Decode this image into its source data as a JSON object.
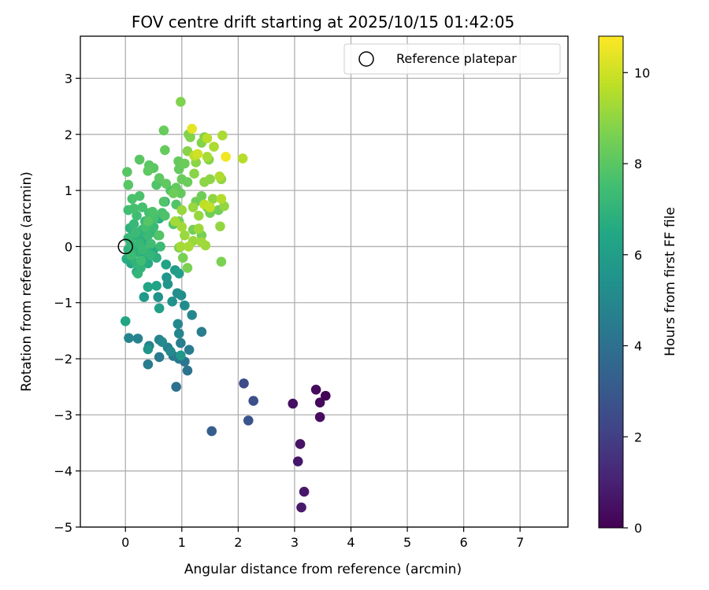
{
  "chart_data": {
    "type": "scatter",
    "title": "FOV centre drift starting at 2025/10/15 01:42:05",
    "xlabel": "Angular distance from reference (arcmin)",
    "ylabel": "Rotation from reference (arcmin)",
    "xlim": [
      -0.8,
      7.85
    ],
    "ylim": [
      -5.0,
      3.75
    ],
    "xticks": [
      0,
      1,
      2,
      3,
      4,
      5,
      6,
      7
    ],
    "yticks": [
      -5,
      -4,
      -3,
      -2,
      -1,
      0,
      1,
      2,
      3
    ],
    "grid": true,
    "legend": {
      "location": "upper right",
      "entries": [
        "Reference platepar"
      ]
    },
    "reference_point": {
      "x": 0,
      "y": 0,
      "marker": "hollow circle"
    },
    "colorbar": {
      "label": "Hours from first FF file",
      "colormap": "viridis",
      "range": [
        0,
        10.8
      ],
      "ticks": [
        0,
        2,
        4,
        6,
        8,
        10
      ]
    },
    "points": [
      {
        "x": 3.55,
        "y": -2.66,
        "c": 0.1
      },
      {
        "x": 3.45,
        "y": -2.78,
        "c": 0.2
      },
      {
        "x": 3.38,
        "y": -2.55,
        "c": 0.3
      },
      {
        "x": 3.45,
        "y": -3.04,
        "c": 0.35
      },
      {
        "x": 2.97,
        "y": -2.8,
        "c": 0.45
      },
      {
        "x": 3.1,
        "y": -3.52,
        "c": 0.55
      },
      {
        "x": 3.06,
        "y": -3.83,
        "c": 0.65
      },
      {
        "x": 3.17,
        "y": -4.37,
        "c": 0.7
      },
      {
        "x": 3.12,
        "y": -4.65,
        "c": 0.8
      },
      {
        "x": 2.1,
        "y": -2.44,
        "c": 2.5
      },
      {
        "x": 2.27,
        "y": -2.75,
        "c": 2.6
      },
      {
        "x": 2.18,
        "y": -3.1,
        "c": 2.8
      },
      {
        "x": 1.53,
        "y": -3.29,
        "c": 3.2
      },
      {
        "x": 0.9,
        "y": -2.5,
        "c": 4.0
      },
      {
        "x": 1.1,
        "y": -2.21,
        "c": 4.1
      },
      {
        "x": 1.05,
        "y": -2.05,
        "c": 4.2
      },
      {
        "x": 0.95,
        "y": -2.0,
        "c": 4.3
      },
      {
        "x": 0.85,
        "y": -1.95,
        "c": 4.35
      },
      {
        "x": 0.6,
        "y": -1.97,
        "c": 4.4
      },
      {
        "x": 0.4,
        "y": -2.1,
        "c": 4.45
      },
      {
        "x": 1.13,
        "y": -1.84,
        "c": 4.5
      },
      {
        "x": 1.35,
        "y": -1.52,
        "c": 4.55
      },
      {
        "x": 0.98,
        "y": -1.72,
        "c": 4.6
      },
      {
        "x": 0.75,
        "y": -1.8,
        "c": 4.65
      },
      {
        "x": 0.6,
        "y": -1.66,
        "c": 4.7
      },
      {
        "x": 0.42,
        "y": -1.77,
        "c": 4.75
      },
      {
        "x": 0.22,
        "y": -1.64,
        "c": 4.8
      },
      {
        "x": 0.06,
        "y": -1.63,
        "c": 4.85
      },
      {
        "x": 0.95,
        "y": -1.55,
        "c": 4.9
      },
      {
        "x": 1.18,
        "y": -1.22,
        "c": 4.95
      },
      {
        "x": 0.93,
        "y": -1.38,
        "c": 5.0
      },
      {
        "x": 0.8,
        "y": -1.87,
        "c": 5.05
      },
      {
        "x": 0.65,
        "y": -1.7,
        "c": 5.1
      },
      {
        "x": 1.05,
        "y": -1.05,
        "c": 5.2
      },
      {
        "x": 0.99,
        "y": -0.87,
        "c": 5.25
      },
      {
        "x": 0.92,
        "y": -0.83,
        "c": 5.3
      },
      {
        "x": 0.83,
        "y": -0.98,
        "c": 5.4
      },
      {
        "x": 0.58,
        "y": -0.9,
        "c": 5.5
      },
      {
        "x": 0.4,
        "y": -1.83,
        "c": 5.55
      },
      {
        "x": 0.75,
        "y": -0.67,
        "c": 5.6
      },
      {
        "x": 0.73,
        "y": -0.55,
        "c": 5.7
      },
      {
        "x": 0.98,
        "y": -1.94,
        "c": 5.75
      },
      {
        "x": 0.33,
        "y": -0.9,
        "c": 5.8
      },
      {
        "x": 0.88,
        "y": -0.42,
        "c": 5.9
      },
      {
        "x": 0.95,
        "y": -0.48,
        "c": 6.0
      },
      {
        "x": 0.6,
        "y": -1.1,
        "c": 6.1
      },
      {
        "x": 0.72,
        "y": -0.32,
        "c": 6.2
      },
      {
        "x": 0.55,
        "y": -0.7,
        "c": 6.25
      },
      {
        "x": 0.4,
        "y": -0.72,
        "c": 6.3
      },
      {
        "x": 0.0,
        "y": -1.33,
        "c": 6.35
      },
      {
        "x": 0.2,
        "y": -0.45,
        "c": 6.4
      },
      {
        "x": 0.1,
        "y": -0.3,
        "c": 6.45
      },
      {
        "x": 0.3,
        "y": -0.2,
        "c": 6.5
      },
      {
        "x": 0.5,
        "y": -0.05,
        "c": 6.55
      },
      {
        "x": 0.4,
        "y": -0.3,
        "c": 6.6
      },
      {
        "x": 0.02,
        "y": -0.22,
        "c": 6.65
      },
      {
        "x": 0.15,
        "y": 0.0,
        "c": 6.7
      },
      {
        "x": 0.35,
        "y": 0.1,
        "c": 6.72
      },
      {
        "x": 0.6,
        "y": 0.5,
        "c": 6.75
      },
      {
        "x": 0.7,
        "y": 0.8,
        "c": 6.78
      },
      {
        "x": 0.45,
        "y": 0.25,
        "c": 6.8
      },
      {
        "x": 0.55,
        "y": -0.2,
        "c": 6.82
      },
      {
        "x": 0.25,
        "y": 0.15,
        "c": 6.85
      },
      {
        "x": 0.08,
        "y": 0.33,
        "c": 6.88
      },
      {
        "x": 0.05,
        "y": -0.05,
        "c": 6.9
      },
      {
        "x": 0.2,
        "y": -0.1,
        "c": 6.92
      },
      {
        "x": 0.12,
        "y": 0.18,
        "c": 6.95
      },
      {
        "x": 0.3,
        "y": 0.3,
        "c": 6.98
      },
      {
        "x": 0.38,
        "y": -0.1,
        "c": 7.0
      },
      {
        "x": 0.18,
        "y": -0.28,
        "c": 7.02
      },
      {
        "x": 0.27,
        "y": -0.38,
        "c": 7.05
      },
      {
        "x": 0.22,
        "y": -0.48,
        "c": 7.08
      },
      {
        "x": 0.45,
        "y": -0.15,
        "c": 7.1
      },
      {
        "x": 0.1,
        "y": 0.05,
        "c": 7.12
      },
      {
        "x": 0.35,
        "y": 0.45,
        "c": 7.15
      },
      {
        "x": 0.15,
        "y": 0.4,
        "c": 7.18
      },
      {
        "x": 0.25,
        "y": 0.05,
        "c": 7.2
      },
      {
        "x": 0.05,
        "y": 0.15,
        "c": 7.22
      },
      {
        "x": 0.3,
        "y": -0.05,
        "c": 7.25
      },
      {
        "x": 0.18,
        "y": 0.25,
        "c": 7.28
      },
      {
        "x": 0.4,
        "y": 0.2,
        "c": 7.3
      },
      {
        "x": 0.5,
        "y": 0.35,
        "c": 7.32
      },
      {
        "x": 0.62,
        "y": 0.0,
        "c": 7.35
      },
      {
        "x": 0.1,
        "y": -0.15,
        "c": 7.38
      },
      {
        "x": 0.28,
        "y": -0.25,
        "c": 7.4
      },
      {
        "x": 0.45,
        "y": 0.05,
        "c": 7.42
      },
      {
        "x": 0.2,
        "y": 0.55,
        "c": 7.45
      },
      {
        "x": 0.05,
        "y": 0.65,
        "c": 7.48
      },
      {
        "x": 0.35,
        "y": 0.35,
        "c": 7.5
      },
      {
        "x": 0.58,
        "y": 0.2,
        "c": 7.52
      },
      {
        "x": 0.42,
        "y": 0.6,
        "c": 7.55
      },
      {
        "x": 0.15,
        "y": 0.68,
        "c": 7.58
      },
      {
        "x": 0.3,
        "y": 0.7,
        "c": 7.6
      },
      {
        "x": 0.5,
        "y": 0.5,
        "c": 7.62
      },
      {
        "x": 0.65,
        "y": 0.6,
        "c": 7.65
      },
      {
        "x": 0.12,
        "y": 0.85,
        "c": 7.68
      },
      {
        "x": 0.25,
        "y": 0.9,
        "c": 7.7
      },
      {
        "x": 0.48,
        "y": 0.62,
        "c": 7.72
      },
      {
        "x": 0.7,
        "y": 0.55,
        "c": 7.75
      },
      {
        "x": 0.8,
        "y": 1.0,
        "c": 7.78
      },
      {
        "x": 0.55,
        "y": 1.1,
        "c": 7.8
      },
      {
        "x": 0.68,
        "y": 0.8,
        "c": 7.82
      },
      {
        "x": 0.9,
        "y": 0.75,
        "c": 7.85
      },
      {
        "x": 0.6,
        "y": 0.2,
        "c": 7.88
      },
      {
        "x": 0.85,
        "y": 0.4,
        "c": 7.9
      },
      {
        "x": 0.4,
        "y": 0.45,
        "c": 7.92
      },
      {
        "x": 0.05,
        "y": 1.1,
        "c": 7.95
      },
      {
        "x": 0.03,
        "y": 1.33,
        "c": 7.98
      },
      {
        "x": 0.25,
        "y": 1.55,
        "c": 8.0
      },
      {
        "x": 0.42,
        "y": 1.45,
        "c": 8.02
      },
      {
        "x": 0.5,
        "y": 1.4,
        "c": 8.05
      },
      {
        "x": 0.4,
        "y": 1.35,
        "c": 8.08
      },
      {
        "x": 0.6,
        "y": 1.22,
        "c": 8.1
      },
      {
        "x": 0.72,
        "y": 1.12,
        "c": 8.12
      },
      {
        "x": 0.9,
        "y": 1.05,
        "c": 8.15
      },
      {
        "x": 0.98,
        "y": 0.95,
        "c": 8.18
      },
      {
        "x": 0.95,
        "y": 1.38,
        "c": 8.2
      },
      {
        "x": 0.94,
        "y": 1.52,
        "c": 8.22
      },
      {
        "x": 0.7,
        "y": 1.72,
        "c": 8.25
      },
      {
        "x": 0.68,
        "y": 2.07,
        "c": 8.28
      },
      {
        "x": 1.0,
        "y": 1.2,
        "c": 8.3
      },
      {
        "x": 1.1,
        "y": 1.15,
        "c": 8.32
      },
      {
        "x": 1.05,
        "y": 1.48,
        "c": 8.35
      },
      {
        "x": 0.85,
        "y": 0.95,
        "c": 8.38
      },
      {
        "x": 1.25,
        "y": 0.8,
        "c": 8.4
      },
      {
        "x": 1.35,
        "y": 0.9,
        "c": 8.42
      },
      {
        "x": 1.5,
        "y": 0.6,
        "c": 8.45
      },
      {
        "x": 1.65,
        "y": 0.65,
        "c": 8.48
      },
      {
        "x": 0.95,
        "y": 0.45,
        "c": 8.5
      },
      {
        "x": 1.2,
        "y": 0.3,
        "c": 8.52
      },
      {
        "x": 1.35,
        "y": 0.2,
        "c": 8.55
      },
      {
        "x": 1.45,
        "y": 0.7,
        "c": 8.58
      },
      {
        "x": 1.02,
        "y": -0.2,
        "c": 8.6
      },
      {
        "x": 1.1,
        "y": -0.38,
        "c": 8.62
      },
      {
        "x": 1.7,
        "y": -0.27,
        "c": 8.65
      },
      {
        "x": 0.95,
        "y": -0.02,
        "c": 8.68
      },
      {
        "x": 1.12,
        "y": 2.0,
        "c": 8.7
      },
      {
        "x": 0.98,
        "y": 2.58,
        "c": 8.72
      },
      {
        "x": 1.15,
        "y": 1.95,
        "c": 8.75
      },
      {
        "x": 1.35,
        "y": 1.85,
        "c": 8.78
      },
      {
        "x": 1.4,
        "y": 1.95,
        "c": 8.8
      },
      {
        "x": 1.48,
        "y": 1.55,
        "c": 8.82
      },
      {
        "x": 1.1,
        "y": 1.7,
        "c": 8.85
      },
      {
        "x": 1.22,
        "y": 1.3,
        "c": 8.88
      },
      {
        "x": 1.25,
        "y": 1.5,
        "c": 8.9
      },
      {
        "x": 1.4,
        "y": 1.15,
        "c": 8.92
      },
      {
        "x": 1.5,
        "y": 1.2,
        "c": 8.95
      },
      {
        "x": 1.55,
        "y": 0.85,
        "c": 8.98
      },
      {
        "x": 1.7,
        "y": 1.2,
        "c": 9.0
      },
      {
        "x": 1.75,
        "y": 0.72,
        "c": 9.02
      },
      {
        "x": 1.68,
        "y": 0.36,
        "c": 9.05
      },
      {
        "x": 1.3,
        "y": 0.55,
        "c": 9.08
      },
      {
        "x": 1.2,
        "y": 0.7,
        "c": 9.1
      },
      {
        "x": 1.0,
        "y": 0.65,
        "c": 9.12
      },
      {
        "x": 1.05,
        "y": 0.2,
        "c": 9.15
      },
      {
        "x": 1.2,
        "y": 0.1,
        "c": 9.18
      },
      {
        "x": 1.3,
        "y": 0.32,
        "c": 9.2
      },
      {
        "x": 1.42,
        "y": 0.02,
        "c": 9.22
      },
      {
        "x": 1.35,
        "y": 0.08,
        "c": 9.25
      },
      {
        "x": 1.0,
        "y": 0.35,
        "c": 9.28
      },
      {
        "x": 0.88,
        "y": 0.45,
        "c": 9.3
      },
      {
        "x": 0.98,
        "y": 0.0,
        "c": 9.32
      },
      {
        "x": 1.12,
        "y": 0.0,
        "c": 9.35
      },
      {
        "x": 1.45,
        "y": 1.6,
        "c": 9.38
      },
      {
        "x": 1.72,
        "y": 1.98,
        "c": 9.4
      },
      {
        "x": 1.57,
        "y": 1.78,
        "c": 9.45
      },
      {
        "x": 1.67,
        "y": 1.25,
        "c": 9.5
      },
      {
        "x": 1.7,
        "y": 0.85,
        "c": 9.55
      },
      {
        "x": 2.08,
        "y": 1.57,
        "c": 9.6
      },
      {
        "x": 1.45,
        "y": 1.93,
        "c": 9.65
      },
      {
        "x": 1.22,
        "y": 1.62,
        "c": 9.7
      },
      {
        "x": 1.4,
        "y": 0.75,
        "c": 9.75
      },
      {
        "x": 1.5,
        "y": 0.7,
        "c": 9.8
      },
      {
        "x": 1.28,
        "y": 1.65,
        "c": 10.0
      },
      {
        "x": 1.18,
        "y": 2.1,
        "c": 10.4
      },
      {
        "x": 1.78,
        "y": 1.6,
        "c": 10.6
      }
    ]
  }
}
